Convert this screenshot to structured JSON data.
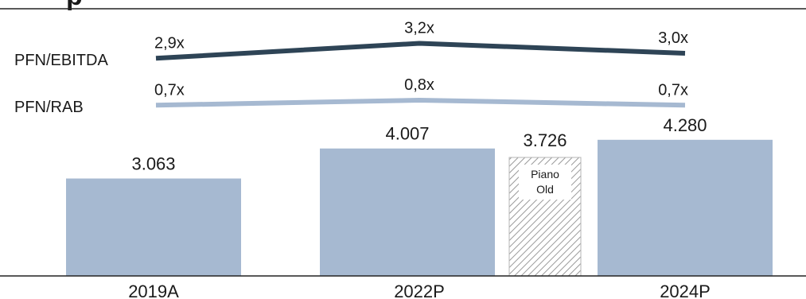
{
  "title": "p",
  "chart_data": {
    "type": "bar",
    "categories": [
      "2019A",
      "2022P",
      "2024P"
    ],
    "series": [
      {
        "name": "",
        "values": [
          3063,
          4007,
          4280
        ],
        "value_labels": [
          "3.063",
          "4.007",
          "4.280"
        ],
        "color": "#a6b9d1"
      }
    ],
    "extra_bar": {
      "category": "2022P",
      "value": 3726,
      "value_label": "3.726",
      "label_line1": "Piano",
      "label_line2": "Old",
      "pattern": "diagonal-hatch"
    },
    "ylim": [
      0,
      4600
    ],
    "lines": [
      {
        "name": "PFN/EBITDA",
        "values": [
          2.9,
          3.2,
          3.0
        ],
        "value_labels": [
          "2,9x",
          "3,2x",
          "3,0x"
        ],
        "color": "#2e4456"
      },
      {
        "name": "PFN/RAB",
        "values": [
          0.7,
          0.8,
          0.7
        ],
        "value_labels": [
          "0,7x",
          "0,8x",
          "0,7x"
        ],
        "color": "#a6b9d1"
      }
    ],
    "grid": false,
    "legend": "none"
  }
}
